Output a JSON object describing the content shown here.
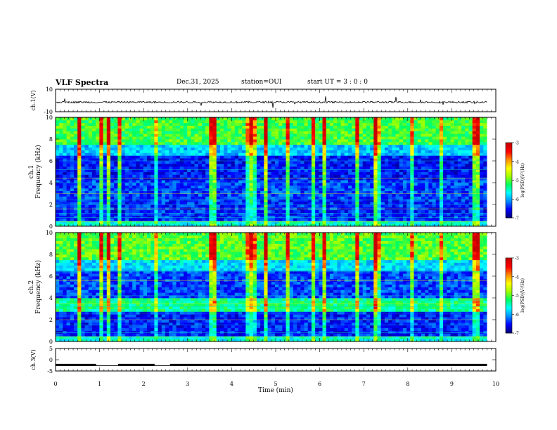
{
  "header": {
    "title": "VLF Spectra",
    "date": "Dec.31, 2025",
    "station": "station=OUI",
    "start": "start  UT =   3  : 0   : 0"
  },
  "xaxis": {
    "label": "Time  (min)",
    "ticks": [
      "0",
      "1",
      "2",
      "3",
      "4",
      "5",
      "6",
      "7",
      "8",
      "9",
      "10"
    ]
  },
  "colorbar": {
    "label": "log(PSD)(V²/Hz)",
    "ticks": [
      "-3",
      "-4",
      "-5",
      "-6",
      "-7"
    ],
    "colors": [
      "#00007a",
      "#0000ff",
      "#0090ff",
      "#00ffff",
      "#00ff60",
      "#a0ff00",
      "#ffff00",
      "#ff9000",
      "#ff0000",
      "#c80000"
    ]
  },
  "chart_data": [
    {
      "type": "line",
      "name": "ch1-waveform",
      "ylabel": "ch.1(V)",
      "ylim": [
        -10,
        10
      ],
      "yticks": [
        "10",
        "-10"
      ],
      "xlim": [
        0,
        10
      ],
      "baseline": -1.5,
      "data_end_min": 9.8
    },
    {
      "type": "heatmap",
      "name": "ch1-spectrogram",
      "title": "ch.1",
      "ylabel": "Frequency  (kHz)",
      "ylim": [
        0,
        10
      ],
      "yticks": [
        "0",
        "2",
        "4",
        "6",
        "8",
        "10"
      ],
      "xlim": [
        0,
        10
      ],
      "data_end_min": 9.8,
      "zlim": [
        -7,
        -3
      ]
    },
    {
      "type": "heatmap",
      "name": "ch2-spectrogram",
      "title": "ch.2",
      "ylabel": "Frequency  (kHz)",
      "ylim": [
        0,
        10
      ],
      "yticks": [
        "0",
        "2",
        "4",
        "6",
        "8",
        "10"
      ],
      "xlim": [
        0,
        10
      ],
      "data_end_min": 9.8,
      "zlim": [
        -7,
        -3
      ]
    },
    {
      "type": "line",
      "name": "ch3-signal",
      "ylabel": "ch.3(V)",
      "ylim": [
        -5,
        5
      ],
      "yticks": [
        "5",
        "0",
        "-5"
      ],
      "xlim": [
        0,
        10
      ],
      "segments": [
        {
          "x": [
            0,
            0.92
          ],
          "y": -2.3
        },
        {
          "x": [
            0.92,
            1.42
          ],
          "y": -2.6
        },
        {
          "x": [
            1.42,
            2.25
          ],
          "y": -2.3
        },
        {
          "x": [
            2.25,
            2.6
          ],
          "y": -2.6
        },
        {
          "x": [
            2.6,
            9.8
          ],
          "y": -2.3
        }
      ]
    }
  ]
}
